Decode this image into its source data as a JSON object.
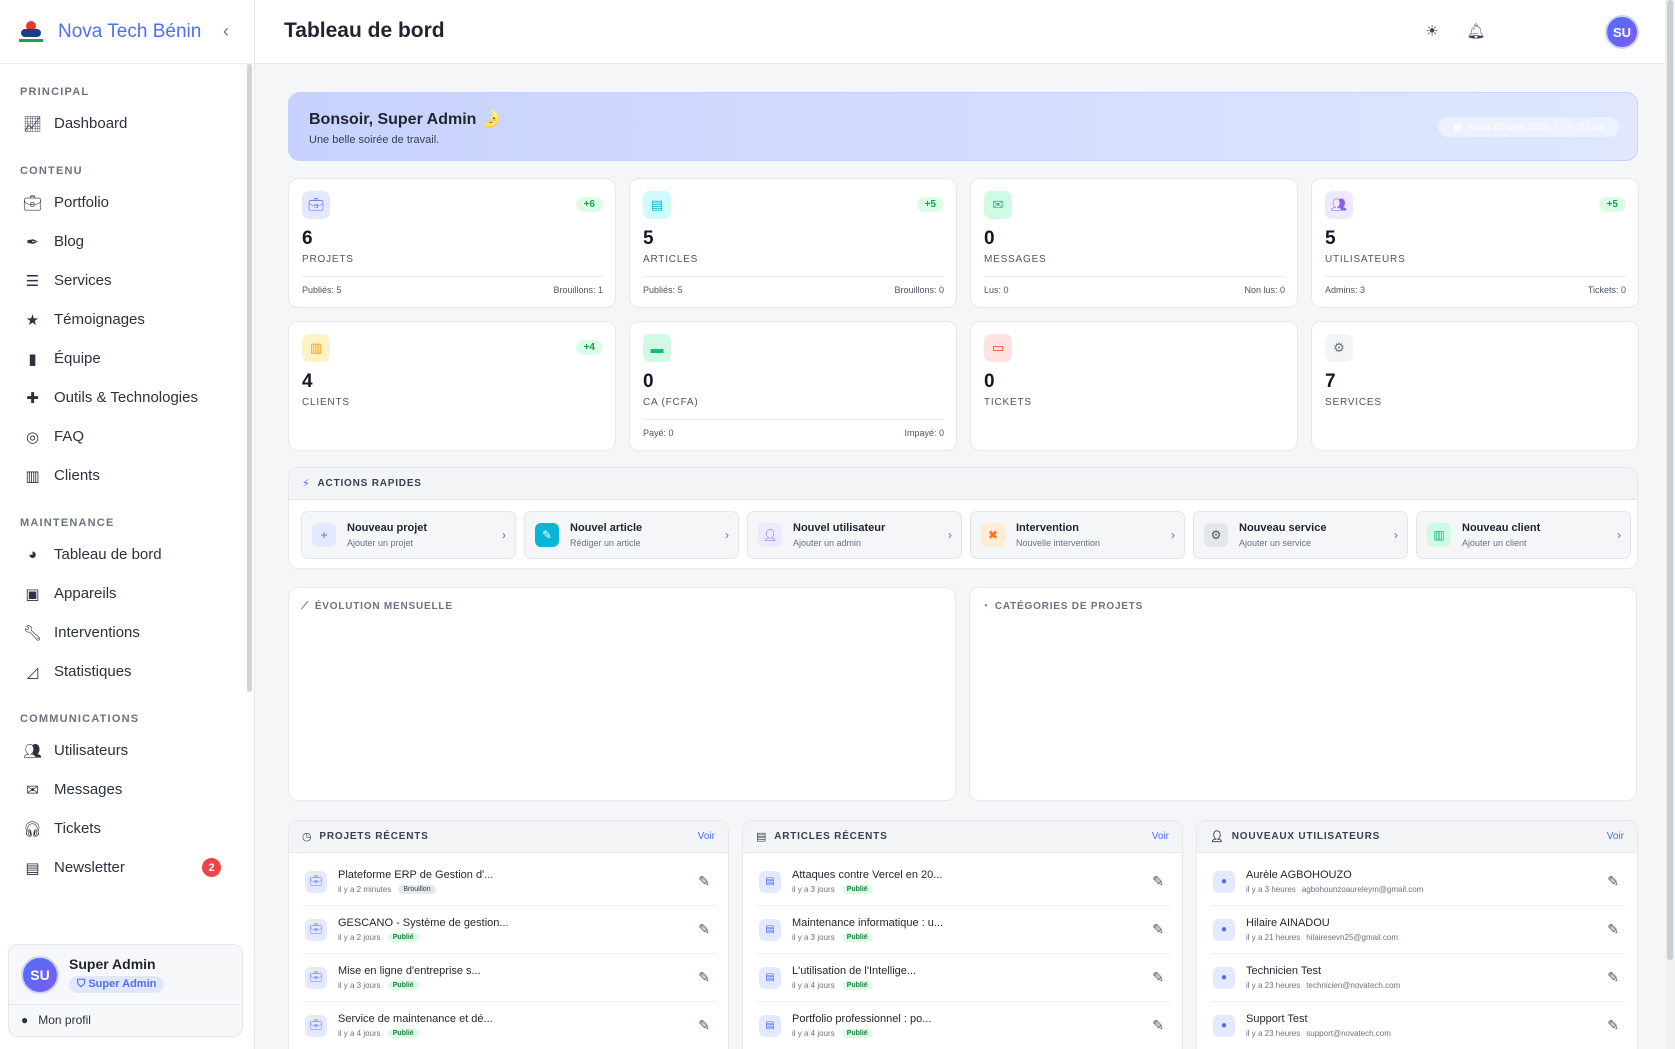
{
  "brand": {
    "name": "Nova Tech Bénin",
    "collapse_icon": "chevron-left-icon"
  },
  "sidebar": {
    "sections": [
      {
        "title": "PRINCIPAL",
        "items": [
          {
            "label": "Dashboard",
            "icon": "chart-line-icon"
          }
        ]
      },
      {
        "title": "CONTENU",
        "items": [
          {
            "label": "Portfolio",
            "icon": "briefcase-icon"
          },
          {
            "label": "Blog",
            "icon": "pen-icon"
          },
          {
            "label": "Services",
            "icon": "list-icon"
          },
          {
            "label": "Témoignages",
            "icon": "star-icon"
          },
          {
            "label": "Équipe",
            "icon": "id-badge-icon"
          },
          {
            "label": "Outils & Technologies",
            "icon": "puzzle-icon"
          },
          {
            "label": "FAQ",
            "icon": "lifebuoy-icon"
          },
          {
            "label": "Clients",
            "icon": "building-icon"
          }
        ]
      },
      {
        "title": "MAINTENANCE",
        "items": [
          {
            "label": "Tableau de bord",
            "icon": "gauge-icon"
          },
          {
            "label": "Appareils",
            "icon": "chip-icon"
          },
          {
            "label": "Interventions",
            "icon": "wrench-icon"
          },
          {
            "label": "Statistiques",
            "icon": "area-chart-icon"
          }
        ]
      },
      {
        "title": "COMMUNICATIONS",
        "items": [
          {
            "label": "Utilisateurs",
            "icon": "users-icon"
          },
          {
            "label": "Messages",
            "icon": "envelope-icon"
          },
          {
            "label": "Tickets",
            "icon": "headset-icon"
          },
          {
            "label": "Newsletter",
            "icon": "newspaper-icon",
            "badge": "2"
          }
        ]
      }
    ]
  },
  "user": {
    "initials": "SU",
    "name": "Super Admin",
    "role": "Super Admin",
    "profile_label": "Mon profil"
  },
  "header": {
    "title": "Tableau de bord",
    "avatar_initials": "SU"
  },
  "welcome": {
    "greeting": "Bonsoir, Super Admin 🌛",
    "subtitle": "Une belle soirée de travail.",
    "date": "jeudi 23 avril 2026",
    "time": "21:04"
  },
  "stats": [
    {
      "value": "6",
      "label": "PROJETS",
      "delta": "+6",
      "icon": "briefcase-icon",
      "foot_left": "Publiés: 5",
      "foot_right": "Brouillons: 1",
      "color": "#4f6ef7",
      "bg": "#e5e9ff"
    },
    {
      "value": "5",
      "label": "ARTICLES",
      "delta": "+5",
      "icon": "newspaper-icon",
      "foot_left": "Publiés: 5",
      "foot_right": "Brouillons: 0",
      "color": "#06b6d4",
      "bg": "#cffafe"
    },
    {
      "value": "0",
      "label": "MESSAGES",
      "delta": "",
      "icon": "envelope-icon",
      "foot_left": "Lus: 0",
      "foot_right": "Non lus: 0",
      "color": "#10b981",
      "bg": "#d1fae5"
    },
    {
      "value": "5",
      "label": "UTILISATEURS",
      "delta": "+5",
      "icon": "users-icon",
      "foot_left": "Admins: 3",
      "foot_right": "Tickets: 0",
      "color": "#8b5cf6",
      "bg": "#ede9fe"
    },
    {
      "value": "4",
      "label": "CLIENTS",
      "delta": "+4",
      "icon": "building-icon",
      "foot_left": "",
      "foot_right": "",
      "color": "#f59e0b",
      "bg": "#fef3c7"
    },
    {
      "value": "0",
      "label": "CA (FCFA)",
      "delta": "",
      "icon": "credit-card-icon",
      "foot_left": "Payé: 0",
      "foot_right": "Impayé: 0",
      "color": "#10b981",
      "bg": "#d1fae5"
    },
    {
      "value": "0",
      "label": "TICKETS",
      "delta": "",
      "icon": "ticket-icon",
      "foot_left": "",
      "foot_right": "",
      "color": "#ef4444",
      "bg": "#fee2e2"
    },
    {
      "value": "7",
      "label": "SERVICES",
      "delta": "",
      "icon": "cogs-icon",
      "foot_left": "",
      "foot_right": "",
      "color": "#6b7280",
      "bg": "#f3f4f6"
    }
  ],
  "quick_actions": {
    "title": "ACTIONS RAPIDES",
    "items": [
      {
        "title": "Nouveau projet",
        "subtitle": "Ajouter un projet",
        "icon": "plus-icon",
        "color": "#4f6ef7",
        "bg": "#e5e9ff"
      },
      {
        "title": "Nouvel article",
        "subtitle": "Rédiger un article",
        "icon": "pencil-icon",
        "color": "#ffffff",
        "bg": "#06b6d4"
      },
      {
        "title": "Nouvel utilisateur",
        "subtitle": "Ajouter un admin",
        "icon": "user-plus-icon",
        "color": "#8b5cf6",
        "bg": "#ede9fe"
      },
      {
        "title": "Intervention",
        "subtitle": "Nouvelle intervention",
        "icon": "tools-icon",
        "color": "#f97316",
        "bg": "#ffedd5"
      },
      {
        "title": "Nouveau service",
        "subtitle": "Ajouter un service",
        "icon": "cog-icon",
        "color": "#4b5563",
        "bg": "#e5e7eb"
      },
      {
        "title": "Nouveau client",
        "subtitle": "Ajouter un client",
        "icon": "building-icon",
        "color": "#10b981",
        "bg": "#d1fae5"
      }
    ]
  },
  "charts": {
    "monthly_title": "ÉVOLUTION MENSUELLE",
    "categories_title": "CATÉGORIES DE PROJETS"
  },
  "recent_projects": {
    "title": "PROJETS RÉCENTS",
    "voir": "Voir",
    "items": [
      {
        "title": "Plateforme ERP de Gestion d'...",
        "time": "il y a 2 minutes",
        "status": "Brouillon"
      },
      {
        "title": "GESCANO - Système de gestion...",
        "time": "il y a 2 jours",
        "status": "Publié"
      },
      {
        "title": "Mise en ligne d'entreprise s...",
        "time": "il y a 3 jours",
        "status": "Publié"
      },
      {
        "title": "Service de maintenance et dé...",
        "time": "il y a 4 jours",
        "status": "Publié"
      }
    ]
  },
  "recent_articles": {
    "title": "ARTICLES RÉCENTS",
    "voir": "Voir",
    "items": [
      {
        "title": "Attaques contre Vercel en 20...",
        "time": "il y a 3 jours",
        "status": "Publié"
      },
      {
        "title": "Maintenance informatique : u...",
        "time": "il y a 3 jours",
        "status": "Publié"
      },
      {
        "title": "L'utilisation de l'Intellige...",
        "time": "il y a 4 jours",
        "status": "Publié"
      },
      {
        "title": "Portfolio professionnel : po...",
        "time": "il y a 4 jours",
        "status": "Publié"
      }
    ]
  },
  "new_users": {
    "title": "NOUVEAUX UTILISATEURS",
    "voir": "Voir",
    "items": [
      {
        "name": "Aurèle AGBOHOUZO",
        "time": "il y a 3 heures",
        "email": "agbohounzoaureleym@gmail.com"
      },
      {
        "name": "Hilaire AINADOU",
        "time": "il y a 21 heures",
        "email": "hilairesevn25@gmail.com"
      },
      {
        "name": "Technicien Test",
        "time": "il y a 23 heures",
        "email": "technicien@novatech.com"
      },
      {
        "name": "Support Test",
        "time": "il y a 23 heures",
        "email": "support@novatech.com"
      }
    ]
  }
}
